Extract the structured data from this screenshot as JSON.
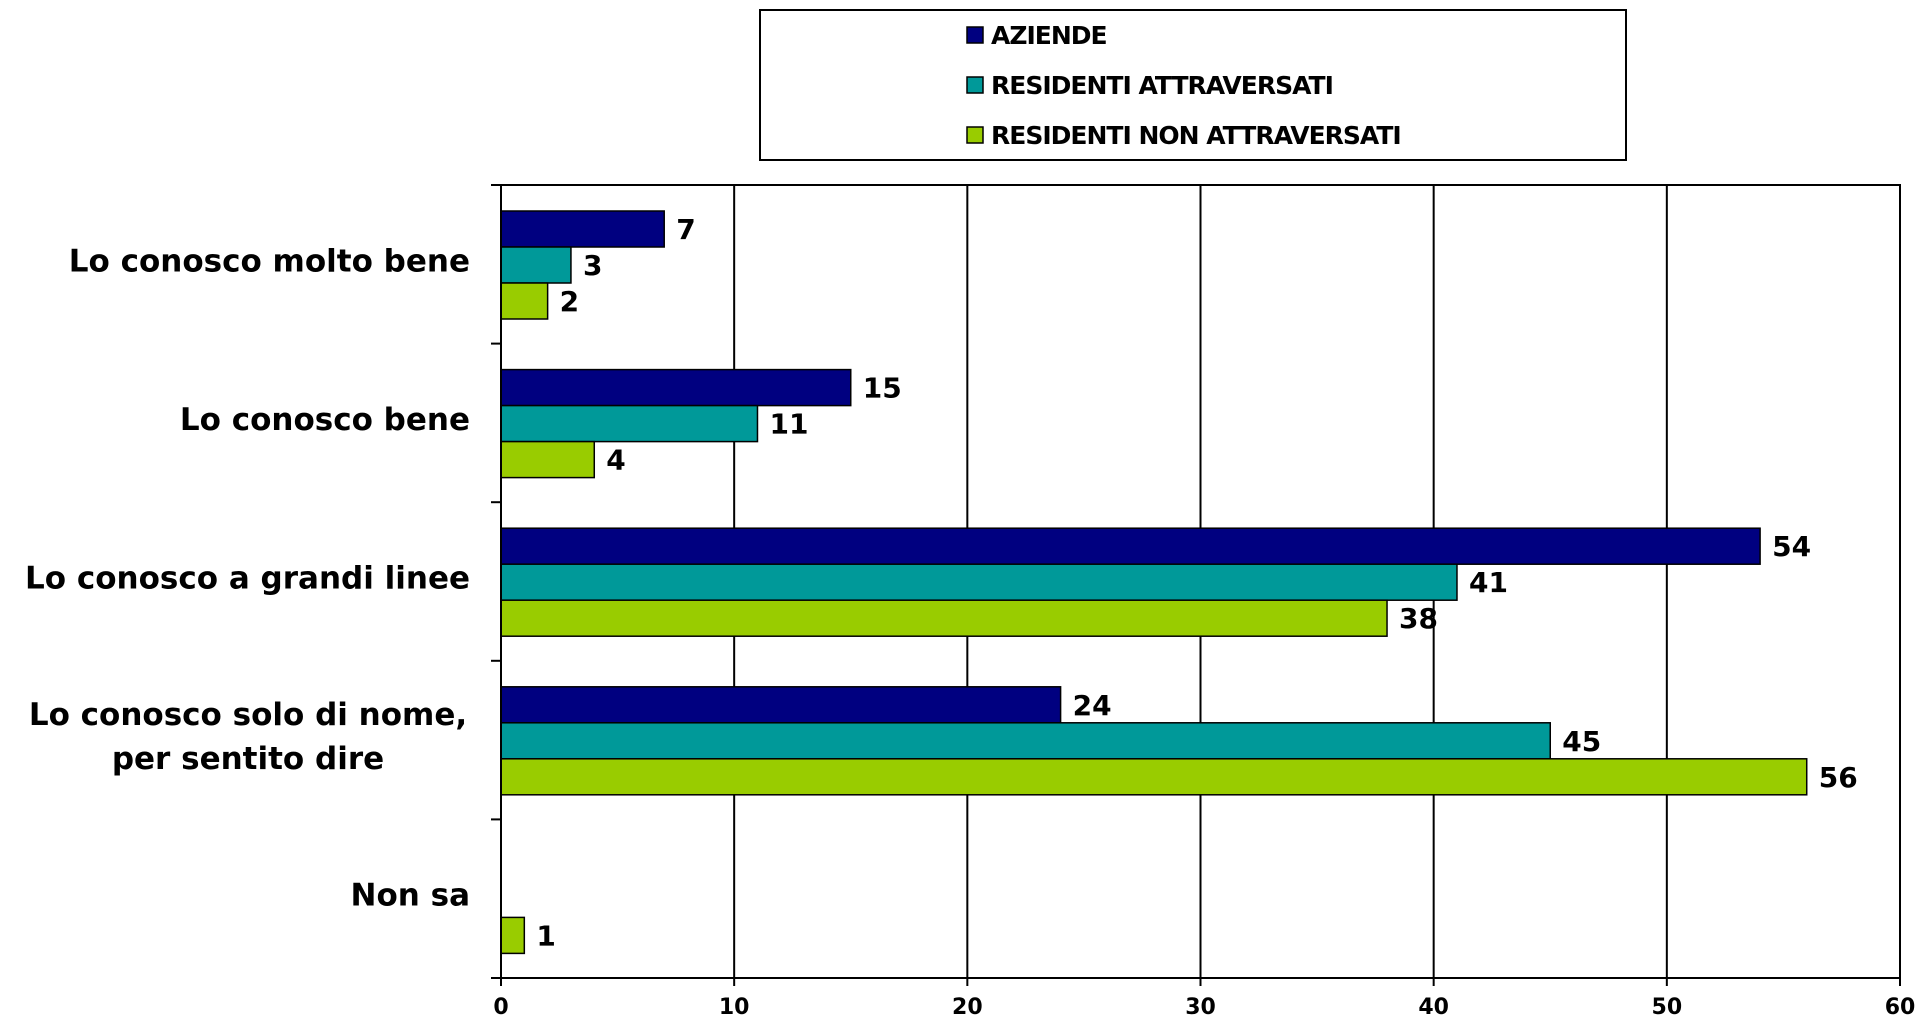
{
  "chart_data": {
    "type": "bar",
    "orientation": "horizontal",
    "categories": [
      [
        "Lo conosco molto bene"
      ],
      [
        "Lo conosco bene"
      ],
      [
        "Lo conosco a grandi linee"
      ],
      [
        "Lo conosco solo di nome,",
        "per sentito dire"
      ],
      [
        "Non sa"
      ]
    ],
    "series": [
      {
        "name": "AZIENDE",
        "color": "#000080",
        "values": [
          7,
          15,
          54,
          24,
          null
        ]
      },
      {
        "name": "RESIDENTI ATTRAVERSATI",
        "color": "#009999",
        "values": [
          3,
          11,
          41,
          45,
          null
        ]
      },
      {
        "name": "RESIDENTI NON ATTRAVERSATI",
        "color": "#99CC00",
        "values": [
          2,
          4,
          38,
          56,
          1
        ]
      }
    ],
    "xlim": [
      0,
      60
    ],
    "xticks": [
      0,
      10,
      20,
      30,
      40,
      50,
      60
    ],
    "grid": "vertical",
    "legend": "top"
  }
}
